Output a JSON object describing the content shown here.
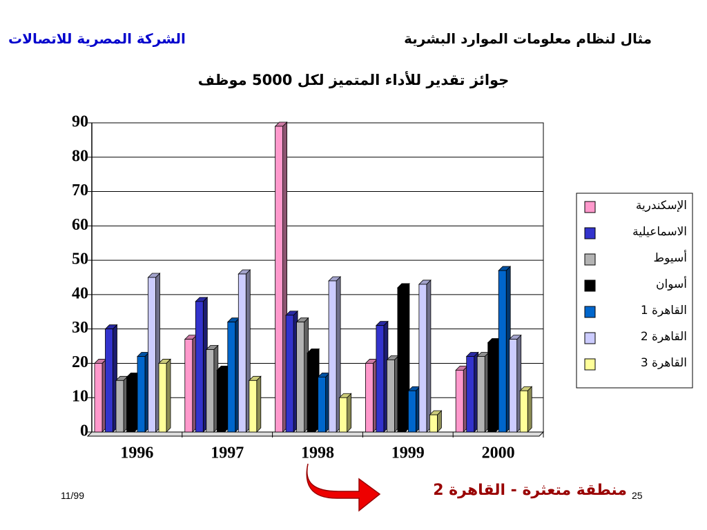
{
  "header": {
    "left": "الشركة المصرية للاتصالات",
    "right": "مثال لنظام معلومات الموارد البشرية"
  },
  "chart_data": {
    "type": "bar3d",
    "title": "جوائز تقدير للأداء المتميز لكل 5000 موظف",
    "categories": [
      "1996",
      "1997",
      "1998",
      "1999",
      "2000"
    ],
    "series": [
      {
        "name": "الإسكندرية",
        "color": "#ff99cc",
        "values": [
          20,
          27,
          89,
          20,
          18
        ]
      },
      {
        "name": "الاسماعيلية",
        "color": "#3333cc",
        "values": [
          30,
          38,
          34,
          31,
          22
        ]
      },
      {
        "name": "أسيوط",
        "color": "#b3b3b3",
        "values": [
          15,
          24,
          32,
          21,
          22
        ]
      },
      {
        "name": "أسوان",
        "color": "#000000",
        "values": [
          16,
          18,
          23,
          42,
          26
        ]
      },
      {
        "name": "القاهرة 1",
        "color": "#0066cc",
        "values": [
          22,
          32,
          16,
          12,
          47
        ]
      },
      {
        "name": "القاهرة 2",
        "color": "#ccccff",
        "values": [
          45,
          46,
          44,
          43,
          27
        ]
      },
      {
        "name": "القاهرة 3",
        "color": "#ffff99",
        "values": [
          20,
          15,
          10,
          5,
          12
        ]
      }
    ],
    "ylim": [
      0,
      90
    ],
    "yticks": [
      0,
      10,
      20,
      30,
      40,
      50,
      60,
      70,
      80,
      90
    ],
    "grid": true
  },
  "footer": {
    "date": "11/99",
    "page": "25",
    "note": "منطقة متعثرة - القاهرة 2"
  }
}
